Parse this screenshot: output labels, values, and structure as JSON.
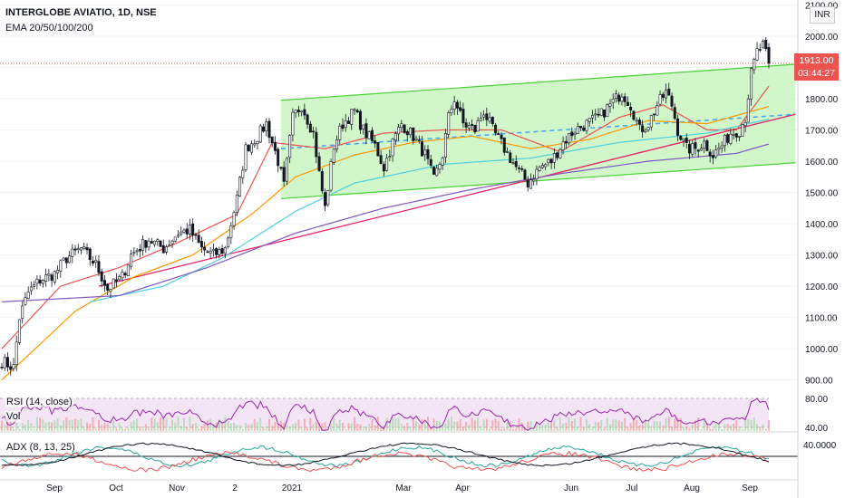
{
  "header": {
    "symbol_line": "INTERGLOBE AVIATIO, 1D, NSE",
    "indicator_line": "EMA 20/50/100/200",
    "currency": "INR"
  },
  "price_tag": {
    "price": "1913.00",
    "countdown": "03:44:27"
  },
  "rsi": {
    "label": "RSI (14, close)",
    "vol_label": "Vol",
    "ticks": [
      "80.00",
      "40.00"
    ],
    "range": [
      40,
      80
    ]
  },
  "adx": {
    "label": "ADX (8, 13, 25)",
    "ticks": [
      "40.0000"
    ]
  },
  "colors": {
    "up": "#131722",
    "down": "#131722",
    "ema20": "#ef5350",
    "ema50": "#ff9800",
    "ema100": "#4dd0e1",
    "ema200": "#7e57c2",
    "trendline": "#e91e63",
    "channel_fill": "#c8f5c0",
    "channel_edge": "#4cd137",
    "midline": "#42a5f5",
    "price_line": "#ef5350",
    "rsi_line": "#9c27b0",
    "rsi_band": "#f3e5f5",
    "adx_black": "#131722",
    "adx_green": "#26a69a",
    "adx_red": "#ef5350"
  },
  "chart_data": {
    "type": "candlestick",
    "title": "INTERGLOBE AVIATIO, 1D, NSE",
    "y_axis": {
      "ticks": [
        "2100.00",
        "2000.00",
        "1900.00",
        "1800.00",
        "1700.00",
        "1600.00",
        "1500.00",
        "1400.00",
        "1300.00",
        "1200.00",
        "1100.00",
        "1000.00",
        "900.00"
      ],
      "range": [
        870,
        2110
      ]
    },
    "x_axis": {
      "labels": [
        "Sep",
        "Oct",
        "Nov",
        "2",
        "2021",
        "Mar",
        "Apr",
        "Jun",
        "Jul",
        "Aug",
        "Sep"
      ]
    },
    "last_price": 1913,
    "close_path": [
      [
        0,
        960
      ],
      [
        4,
        940
      ],
      [
        6,
        1100
      ],
      [
        9,
        1180
      ],
      [
        13,
        1220
      ],
      [
        18,
        1240
      ],
      [
        22,
        1290
      ],
      [
        27,
        1320
      ],
      [
        32,
        1270
      ],
      [
        36,
        1190
      ],
      [
        41,
        1230
      ],
      [
        44,
        1300
      ],
      [
        50,
        1350
      ],
      [
        55,
        1320
      ],
      [
        60,
        1370
      ],
      [
        64,
        1380
      ],
      [
        68,
        1320
      ],
      [
        72,
        1300
      ],
      [
        76,
        1320
      ],
      [
        80,
        1480
      ],
      [
        83,
        1640
      ],
      [
        87,
        1680
      ],
      [
        90,
        1720
      ],
      [
        94,
        1600
      ],
      [
        96,
        1520
      ],
      [
        99,
        1740
      ],
      [
        102,
        1780
      ],
      [
        106,
        1690
      ],
      [
        108,
        1560
      ],
      [
        110,
        1450
      ],
      [
        113,
        1650
      ],
      [
        116,
        1720
      ],
      [
        120,
        1760
      ],
      [
        123,
        1700
      ],
      [
        127,
        1650
      ],
      [
        130,
        1580
      ],
      [
        133,
        1660
      ],
      [
        136,
        1720
      ],
      [
        140,
        1680
      ],
      [
        144,
        1620
      ],
      [
        147,
        1540
      ],
      [
        150,
        1620
      ],
      [
        152,
        1740
      ],
      [
        154,
        1800
      ],
      [
        157,
        1720
      ],
      [
        161,
        1700
      ],
      [
        164,
        1760
      ],
      [
        167,
        1700
      ],
      [
        171,
        1640
      ],
      [
        175,
        1580
      ],
      [
        179,
        1530
      ],
      [
        183,
        1580
      ],
      [
        187,
        1600
      ],
      [
        191,
        1660
      ],
      [
        195,
        1700
      ],
      [
        199,
        1720
      ],
      [
        203,
        1740
      ],
      [
        207,
        1780
      ],
      [
        211,
        1820
      ],
      [
        214,
        1780
      ],
      [
        217,
        1700
      ],
      [
        220,
        1720
      ],
      [
        223,
        1780
      ],
      [
        226,
        1820
      ],
      [
        228,
        1780
      ],
      [
        230,
        1700
      ],
      [
        233,
        1640
      ],
      [
        236,
        1640
      ],
      [
        239,
        1660
      ],
      [
        242,
        1620
      ],
      [
        245,
        1650
      ],
      [
        248,
        1690
      ],
      [
        251,
        1700
      ],
      [
        253,
        1740
      ],
      [
        255,
        1880
      ],
      [
        257,
        1950
      ],
      [
        259,
        1970
      ],
      [
        261,
        1913
      ]
    ],
    "channel": {
      "upper": [
        [
          95,
          1795
        ],
        [
          270,
          1910
        ]
      ],
      "lower": [
        [
          95,
          1480
        ],
        [
          270,
          1595
        ]
      ],
      "midline": [
        [
          95,
          1640
        ],
        [
          270,
          1750
        ]
      ]
    },
    "trendline": [
      [
        33,
        1200
      ],
      [
        270,
        1750
      ]
    ],
    "emas": {
      "ema20": [
        [
          0,
          1000
        ],
        [
          20,
          1200
        ],
        [
          40,
          1260
        ],
        [
          60,
          1340
        ],
        [
          80,
          1430
        ],
        [
          92,
          1660
        ],
        [
          110,
          1640
        ],
        [
          130,
          1690
        ],
        [
          150,
          1700
        ],
        [
          170,
          1700
        ],
        [
          190,
          1630
        ],
        [
          210,
          1740
        ],
        [
          225,
          1780
        ],
        [
          240,
          1700
        ],
        [
          250,
          1700
        ],
        [
          261,
          1840
        ]
      ],
      "ema50": [
        [
          0,
          900
        ],
        [
          25,
          1120
        ],
        [
          45,
          1230
        ],
        [
          65,
          1300
        ],
        [
          85,
          1430
        ],
        [
          100,
          1550
        ],
        [
          120,
          1620
        ],
        [
          140,
          1660
        ],
        [
          160,
          1680
        ],
        [
          180,
          1640
        ],
        [
          200,
          1670
        ],
        [
          220,
          1730
        ],
        [
          240,
          1720
        ],
        [
          261,
          1775
        ]
      ],
      "ema100": [
        [
          30,
          1150
        ],
        [
          55,
          1200
        ],
        [
          75,
          1290
        ],
        [
          100,
          1440
        ],
        [
          120,
          1530
        ],
        [
          150,
          1590
        ],
        [
          180,
          1610
        ],
        [
          210,
          1660
        ],
        [
          240,
          1690
        ],
        [
          261,
          1735
        ]
      ],
      "ema200": [
        [
          0,
          1150
        ],
        [
          40,
          1170
        ],
        [
          70,
          1260
        ],
        [
          100,
          1370
        ],
        [
          130,
          1450
        ],
        [
          160,
          1510
        ],
        [
          190,
          1560
        ],
        [
          220,
          1600
        ],
        [
          250,
          1625
        ],
        [
          261,
          1655
        ]
      ]
    }
  }
}
